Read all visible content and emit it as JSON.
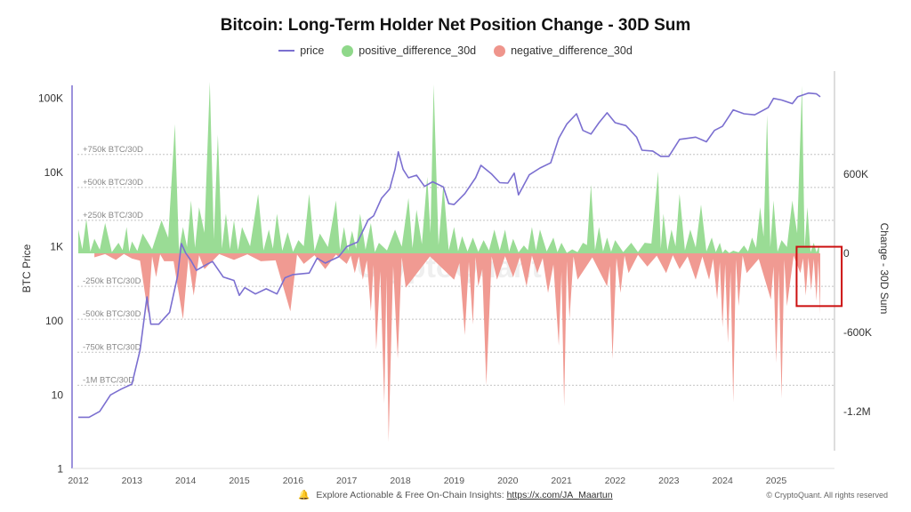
{
  "chart_data": {
    "type": "line",
    "title": "Bitcoin: Long-Term Holder Net Position Change - 30D Sum",
    "legend": [
      {
        "name": "price",
        "color": "#7b6fd0",
        "shape": "line"
      },
      {
        "name": "positive_difference_30d",
        "color": "#8fd88a",
        "shape": "dot"
      },
      {
        "name": "negative_difference_30d",
        "color": "#ef958c",
        "shape": "dot"
      }
    ],
    "ylabel_left": "BTC Price",
    "ylabel_right": "Change - 30D Sum",
    "left_axis": {
      "scale": "log",
      "ticks": [
        "1",
        "10",
        "100",
        "1K",
        "10K",
        "100K"
      ],
      "range": [
        1,
        200000
      ]
    },
    "right_axis": {
      "scale": "linear",
      "ticks": [
        "600K",
        "0",
        "-600K",
        "-1.2M"
      ],
      "range": [
        -1540000,
        1380000
      ]
    },
    "x_ticks": [
      "2012",
      "2013",
      "2014",
      "2015",
      "2016",
      "2017",
      "2018",
      "2019",
      "2020",
      "2021",
      "2022",
      "2023",
      "2024",
      "2025"
    ],
    "x_range": [
      2012.0,
      2025.92
    ],
    "reference_lines": [
      {
        "label": "+750k BTC/30D",
        "value": 750000
      },
      {
        "label": "+500k BTC/30D",
        "value": 500000
      },
      {
        "label": "+250k BTC/30D",
        "value": 250000
      },
      {
        "label": "-250k BTC/30D",
        "value": -250000
      },
      {
        "label": "-500k BTC/30D",
        "value": -500000
      },
      {
        "label": "-750k BTC/30D",
        "value": -750000
      },
      {
        "label": "-1M BTC/30D",
        "value": -1000000
      }
    ],
    "watermark": "CryptoQuant",
    "highlight_box": {
      "x_start": 2025.38,
      "x_end": 2026.22,
      "y_top": 50000,
      "y_bottom": -400000,
      "color": "#cc1111"
    },
    "series": [
      {
        "name": "price",
        "points": [
          [
            2012.0,
            5
          ],
          [
            2012.2,
            5
          ],
          [
            2012.4,
            6
          ],
          [
            2012.6,
            10
          ],
          [
            2012.8,
            12
          ],
          [
            2013.0,
            14
          ],
          [
            2013.15,
            40
          ],
          [
            2013.28,
            210
          ],
          [
            2013.35,
            90
          ],
          [
            2013.5,
            90
          ],
          [
            2013.7,
            130
          ],
          [
            2013.85,
            400
          ],
          [
            2013.92,
            1100
          ],
          [
            2014.0,
            820
          ],
          [
            2014.1,
            650
          ],
          [
            2014.2,
            480
          ],
          [
            2014.4,
            580
          ],
          [
            2014.5,
            630
          ],
          [
            2014.7,
            390
          ],
          [
            2014.9,
            350
          ],
          [
            2015.0,
            220
          ],
          [
            2015.1,
            280
          ],
          [
            2015.3,
            230
          ],
          [
            2015.5,
            270
          ],
          [
            2015.7,
            230
          ],
          [
            2015.85,
            380
          ],
          [
            2016.0,
            420
          ],
          [
            2016.3,
            440
          ],
          [
            2016.45,
            700
          ],
          [
            2016.6,
            600
          ],
          [
            2016.85,
            730
          ],
          [
            2017.0,
            1000
          ],
          [
            2017.2,
            1150
          ],
          [
            2017.4,
            2300
          ],
          [
            2017.5,
            2600
          ],
          [
            2017.65,
            4500
          ],
          [
            2017.8,
            6000
          ],
          [
            2017.9,
            11000
          ],
          [
            2017.96,
            19000
          ],
          [
            2018.05,
            11000
          ],
          [
            2018.15,
            8500
          ],
          [
            2018.3,
            9200
          ],
          [
            2018.45,
            6500
          ],
          [
            2018.6,
            7500
          ],
          [
            2018.8,
            6400
          ],
          [
            2018.9,
            3800
          ],
          [
            2019.0,
            3700
          ],
          [
            2019.2,
            5200
          ],
          [
            2019.4,
            8500
          ],
          [
            2019.5,
            12500
          ],
          [
            2019.7,
            9500
          ],
          [
            2019.85,
            7300
          ],
          [
            2020.0,
            7200
          ],
          [
            2020.12,
            9800
          ],
          [
            2020.2,
            5000
          ],
          [
            2020.4,
            9300
          ],
          [
            2020.6,
            11500
          ],
          [
            2020.8,
            13500
          ],
          [
            2020.95,
            29000
          ],
          [
            2021.1,
            45000
          ],
          [
            2021.28,
            62000
          ],
          [
            2021.4,
            37000
          ],
          [
            2021.55,
            33000
          ],
          [
            2021.7,
            47000
          ],
          [
            2021.85,
            64000
          ],
          [
            2022.0,
            47000
          ],
          [
            2022.2,
            43000
          ],
          [
            2022.4,
            30000
          ],
          [
            2022.5,
            20000
          ],
          [
            2022.7,
            19500
          ],
          [
            2022.85,
            16500
          ],
          [
            2023.0,
            16500
          ],
          [
            2023.2,
            28000
          ],
          [
            2023.5,
            30000
          ],
          [
            2023.7,
            26000
          ],
          [
            2023.85,
            37000
          ],
          [
            2024.0,
            42000
          ],
          [
            2024.2,
            70000
          ],
          [
            2024.4,
            62000
          ],
          [
            2024.6,
            60000
          ],
          [
            2024.85,
            75000
          ],
          [
            2024.95,
            100000
          ],
          [
            2025.1,
            95000
          ],
          [
            2025.3,
            85000
          ],
          [
            2025.4,
            105000
          ],
          [
            2025.6,
            118000
          ],
          [
            2025.75,
            115000
          ],
          [
            2025.82,
            105000
          ]
        ]
      },
      {
        "name": "positive_difference_30d",
        "peaks": [
          [
            2012.0,
            180000
          ],
          [
            2012.15,
            260000
          ],
          [
            2012.3,
            110000
          ],
          [
            2012.5,
            230000
          ],
          [
            2012.75,
            80000
          ],
          [
            2012.9,
            200000
          ],
          [
            2013.0,
            90000
          ],
          [
            2013.2,
            150000
          ],
          [
            2013.55,
            250000
          ],
          [
            2013.8,
            980000
          ],
          [
            2013.95,
            200000
          ],
          [
            2014.1,
            400000
          ],
          [
            2014.25,
            350000
          ],
          [
            2014.45,
            1300000
          ],
          [
            2014.6,
            900000
          ],
          [
            2014.75,
            300000
          ],
          [
            2014.9,
            250000
          ],
          [
            2015.05,
            200000
          ],
          [
            2015.35,
            450000
          ],
          [
            2015.55,
            180000
          ],
          [
            2015.7,
            300000
          ],
          [
            2015.9,
            160000
          ],
          [
            2016.1,
            100000
          ],
          [
            2016.3,
            450000
          ],
          [
            2016.5,
            150000
          ],
          [
            2016.8,
            400000
          ],
          [
            2016.95,
            200000
          ],
          [
            2017.1,
            170000
          ],
          [
            2017.25,
            300000
          ],
          [
            2017.45,
            230000
          ],
          [
            2017.6,
            80000
          ],
          [
            2017.9,
            180000
          ],
          [
            2018.15,
            420000
          ],
          [
            2018.3,
            330000
          ],
          [
            2018.5,
            580000
          ],
          [
            2018.62,
            1280000
          ],
          [
            2018.8,
            520000
          ],
          [
            2019.0,
            200000
          ],
          [
            2019.15,
            130000
          ],
          [
            2019.35,
            120000
          ],
          [
            2019.55,
            100000
          ],
          [
            2019.75,
            180000
          ],
          [
            2019.95,
            180000
          ],
          [
            2020.1,
            110000
          ],
          [
            2020.3,
            60000
          ],
          [
            2020.45,
            200000
          ],
          [
            2020.6,
            180000
          ],
          [
            2020.85,
            120000
          ],
          [
            2021.0,
            80000
          ],
          [
            2021.2,
            30000
          ],
          [
            2021.4,
            80000
          ],
          [
            2021.55,
            520000
          ],
          [
            2021.7,
            200000
          ],
          [
            2021.85,
            120000
          ],
          [
            2022.0,
            100000
          ],
          [
            2022.3,
            80000
          ],
          [
            2022.55,
            80000
          ],
          [
            2022.8,
            620000
          ],
          [
            2022.9,
            300000
          ],
          [
            2023.05,
            180000
          ],
          [
            2023.2,
            450000
          ],
          [
            2023.4,
            180000
          ],
          [
            2023.6,
            370000
          ],
          [
            2023.8,
            120000
          ],
          [
            2023.95,
            80000
          ],
          [
            2024.05,
            30000
          ],
          [
            2024.2,
            20000
          ],
          [
            2024.4,
            60000
          ],
          [
            2024.55,
            120000
          ],
          [
            2024.7,
            350000
          ],
          [
            2024.83,
            1050000
          ],
          [
            2024.95,
            400000
          ],
          [
            2025.1,
            100000
          ],
          [
            2025.3,
            400000
          ],
          [
            2025.48,
            1270000
          ],
          [
            2025.58,
            350000
          ],
          [
            2025.7,
            80000
          ],
          [
            2025.8,
            60000
          ]
        ]
      },
      {
        "name": "negative_difference_30d",
        "troughs": [
          [
            2012.3,
            -30000
          ],
          [
            2012.7,
            -50000
          ],
          [
            2013.0,
            -40000
          ],
          [
            2013.3,
            -460000
          ],
          [
            2013.45,
            -180000
          ],
          [
            2013.6,
            -60000
          ],
          [
            2013.95,
            -500000
          ],
          [
            2014.15,
            -320000
          ],
          [
            2014.35,
            -120000
          ],
          [
            2014.9,
            -50000
          ],
          [
            2015.4,
            -60000
          ],
          [
            2015.95,
            -440000
          ],
          [
            2016.2,
            -80000
          ],
          [
            2016.6,
            -120000
          ],
          [
            2017.0,
            -80000
          ],
          [
            2017.15,
            -150000
          ],
          [
            2017.3,
            -200000
          ],
          [
            2017.45,
            -440000
          ],
          [
            2017.55,
            -730000
          ],
          [
            2017.7,
            -1140000
          ],
          [
            2017.78,
            -1430000
          ],
          [
            2017.95,
            -800000
          ],
          [
            2018.1,
            -260000
          ],
          [
            2019.0,
            -200000
          ],
          [
            2019.2,
            -620000
          ],
          [
            2019.35,
            -540000
          ],
          [
            2019.45,
            -250000
          ],
          [
            2019.6,
            -1000000
          ],
          [
            2019.8,
            -200000
          ],
          [
            2020.1,
            -180000
          ],
          [
            2020.35,
            -250000
          ],
          [
            2020.55,
            -150000
          ],
          [
            2020.75,
            -300000
          ],
          [
            2020.95,
            -700000
          ],
          [
            2021.05,
            -1160000
          ],
          [
            2021.15,
            -500000
          ],
          [
            2021.3,
            -200000
          ],
          [
            2021.85,
            -250000
          ],
          [
            2021.95,
            -800000
          ],
          [
            2022.1,
            -300000
          ],
          [
            2022.25,
            -150000
          ],
          [
            2022.6,
            -100000
          ],
          [
            2022.95,
            -150000
          ],
          [
            2023.2,
            -120000
          ],
          [
            2023.5,
            -200000
          ],
          [
            2023.75,
            -200000
          ],
          [
            2023.9,
            -350000
          ],
          [
            2024.0,
            -560000
          ],
          [
            2024.1,
            -680000
          ],
          [
            2024.2,
            -1130000
          ],
          [
            2024.3,
            -400000
          ],
          [
            2024.45,
            -150000
          ],
          [
            2024.9,
            -350000
          ],
          [
            2025.0,
            -830000
          ],
          [
            2025.1,
            -1100000
          ],
          [
            2025.2,
            -400000
          ],
          [
            2025.45,
            -150000
          ],
          [
            2025.55,
            -320000
          ],
          [
            2025.65,
            -280000
          ],
          [
            2025.75,
            -360000
          ],
          [
            2025.82,
            -460000
          ]
        ]
      }
    ]
  },
  "footer": {
    "text": "Explore Actionable & Free On-Chain Insights:",
    "link": "https://x.com/JA_Maartun",
    "copyright": "© CryptoQuant. All rights reserved"
  }
}
